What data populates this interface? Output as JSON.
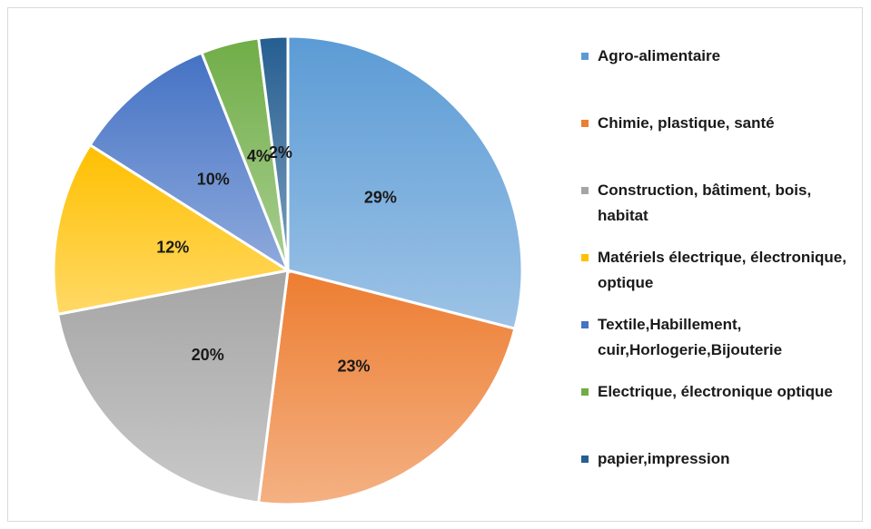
{
  "chart_data": {
    "type": "pie",
    "categories": [
      "Agro-alimentaire",
      "Chimie, plastique, santé",
      "Construction, bâtiment, bois, habitat",
      "Matériels électrique, électronique, optique",
      " Textile,Habillement, cuir,Horlogerie,Bijouterie",
      "Electrique, électronique optique",
      "papier,impression"
    ],
    "values": [
      29,
      23,
      20,
      12,
      10,
      4,
      2
    ],
    "value_labels": [
      "29%",
      "23%",
      "20%",
      "12%",
      "10%",
      "4%",
      "2%"
    ],
    "colors": [
      "#5b9bd5",
      "#ed7d31",
      "#a5a5a5",
      "#ffc000",
      "#4472c4",
      "#70ad47",
      "#255e91"
    ],
    "legend": "right"
  }
}
